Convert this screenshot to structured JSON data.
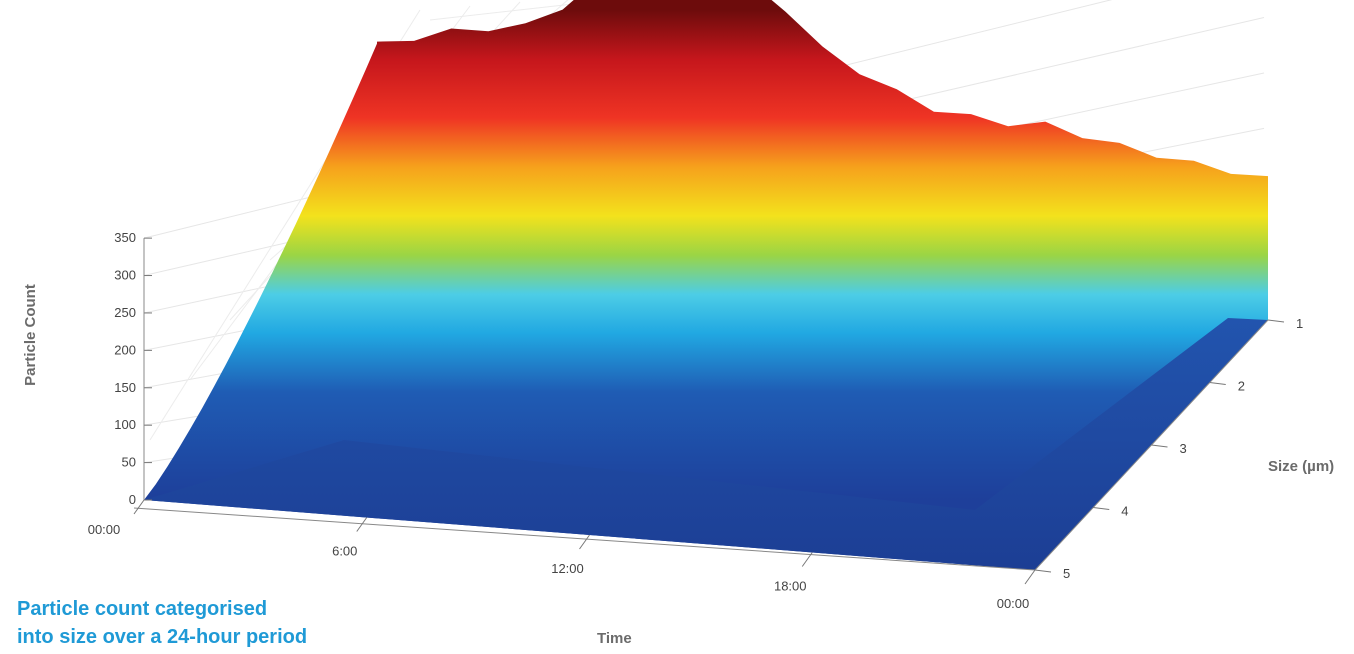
{
  "caption": {
    "line1": "Particle count categorised",
    "line2": "into size over a 24-hour period"
  },
  "chart_data": {
    "type": "surface",
    "title": "Particle count categorised into size over a 24-hour period",
    "xlabel": "Time",
    "ylabel": "Size (µm)",
    "zlabel": "Particle Count",
    "x_ticks": [
      "00:00",
      "6:00",
      "12:00",
      "18:00",
      "00:00"
    ],
    "x_hours": [
      0,
      6,
      12,
      18,
      24
    ],
    "y_ticks": [
      "1",
      "2",
      "3",
      "4",
      "5"
    ],
    "y_values": [
      1,
      2,
      3,
      4,
      5
    ],
    "z_ticks": [
      "0",
      "50",
      "100",
      "150",
      "200",
      "250",
      "300",
      "350"
    ],
    "z_values": [
      0,
      50,
      100,
      150,
      200,
      250,
      300,
      350
    ],
    "zlim": [
      0,
      350
    ],
    "grid": true,
    "colormap": [
      "#1e3f9a",
      "#1f62b8",
      "#21b5e8",
      "#4fd0ea",
      "#a8d846",
      "#f3e31a",
      "#f5a118",
      "#e52a1e",
      "#7a0d0d"
    ],
    "surface_profile_size_1": {
      "hours": [
        0,
        1,
        2,
        3,
        4,
        5,
        6,
        7,
        8,
        9,
        10,
        11,
        12,
        13,
        14,
        15,
        16,
        17,
        18,
        19,
        20,
        21,
        22,
        23,
        24
      ],
      "count": [
        240,
        250,
        262,
        268,
        275,
        300,
        335,
        368,
        395,
        375,
        345,
        318,
        275,
        252,
        232,
        215,
        210,
        205,
        208,
        198,
        190,
        182,
        176,
        170,
        165
      ]
    }
  }
}
